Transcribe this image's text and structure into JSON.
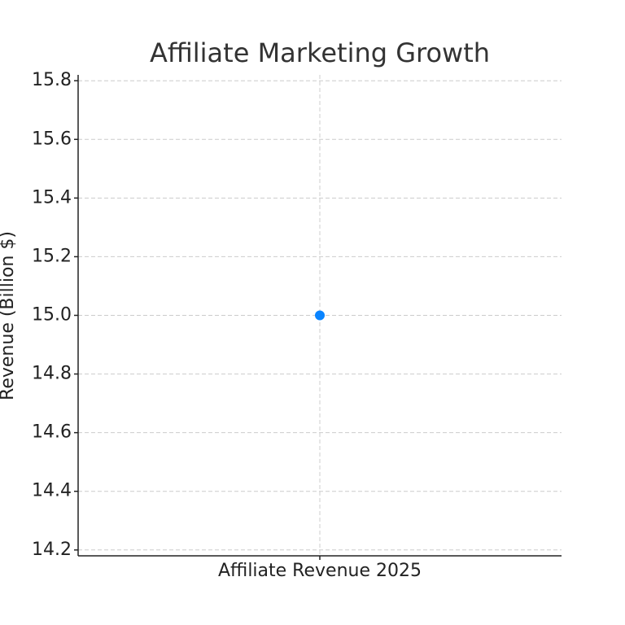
{
  "chart_data": {
    "type": "line",
    "title": "Affiliate Marketing Growth",
    "y_label": "Revenue (Billion $)",
    "categories": [
      "Affiliate Revenue 2025"
    ],
    "series": [
      {
        "color": "#0a84ff",
        "values": [
          15.0
        ]
      }
    ],
    "ylim": [
      14.18,
      15.82
    ],
    "yticks": [
      14.2,
      14.4,
      14.6,
      14.8,
      {
        "value": 15,
        "label": "15.0"
      },
      15.2,
      15.4,
      15.6,
      15.8
    ],
    "grid": true
  }
}
